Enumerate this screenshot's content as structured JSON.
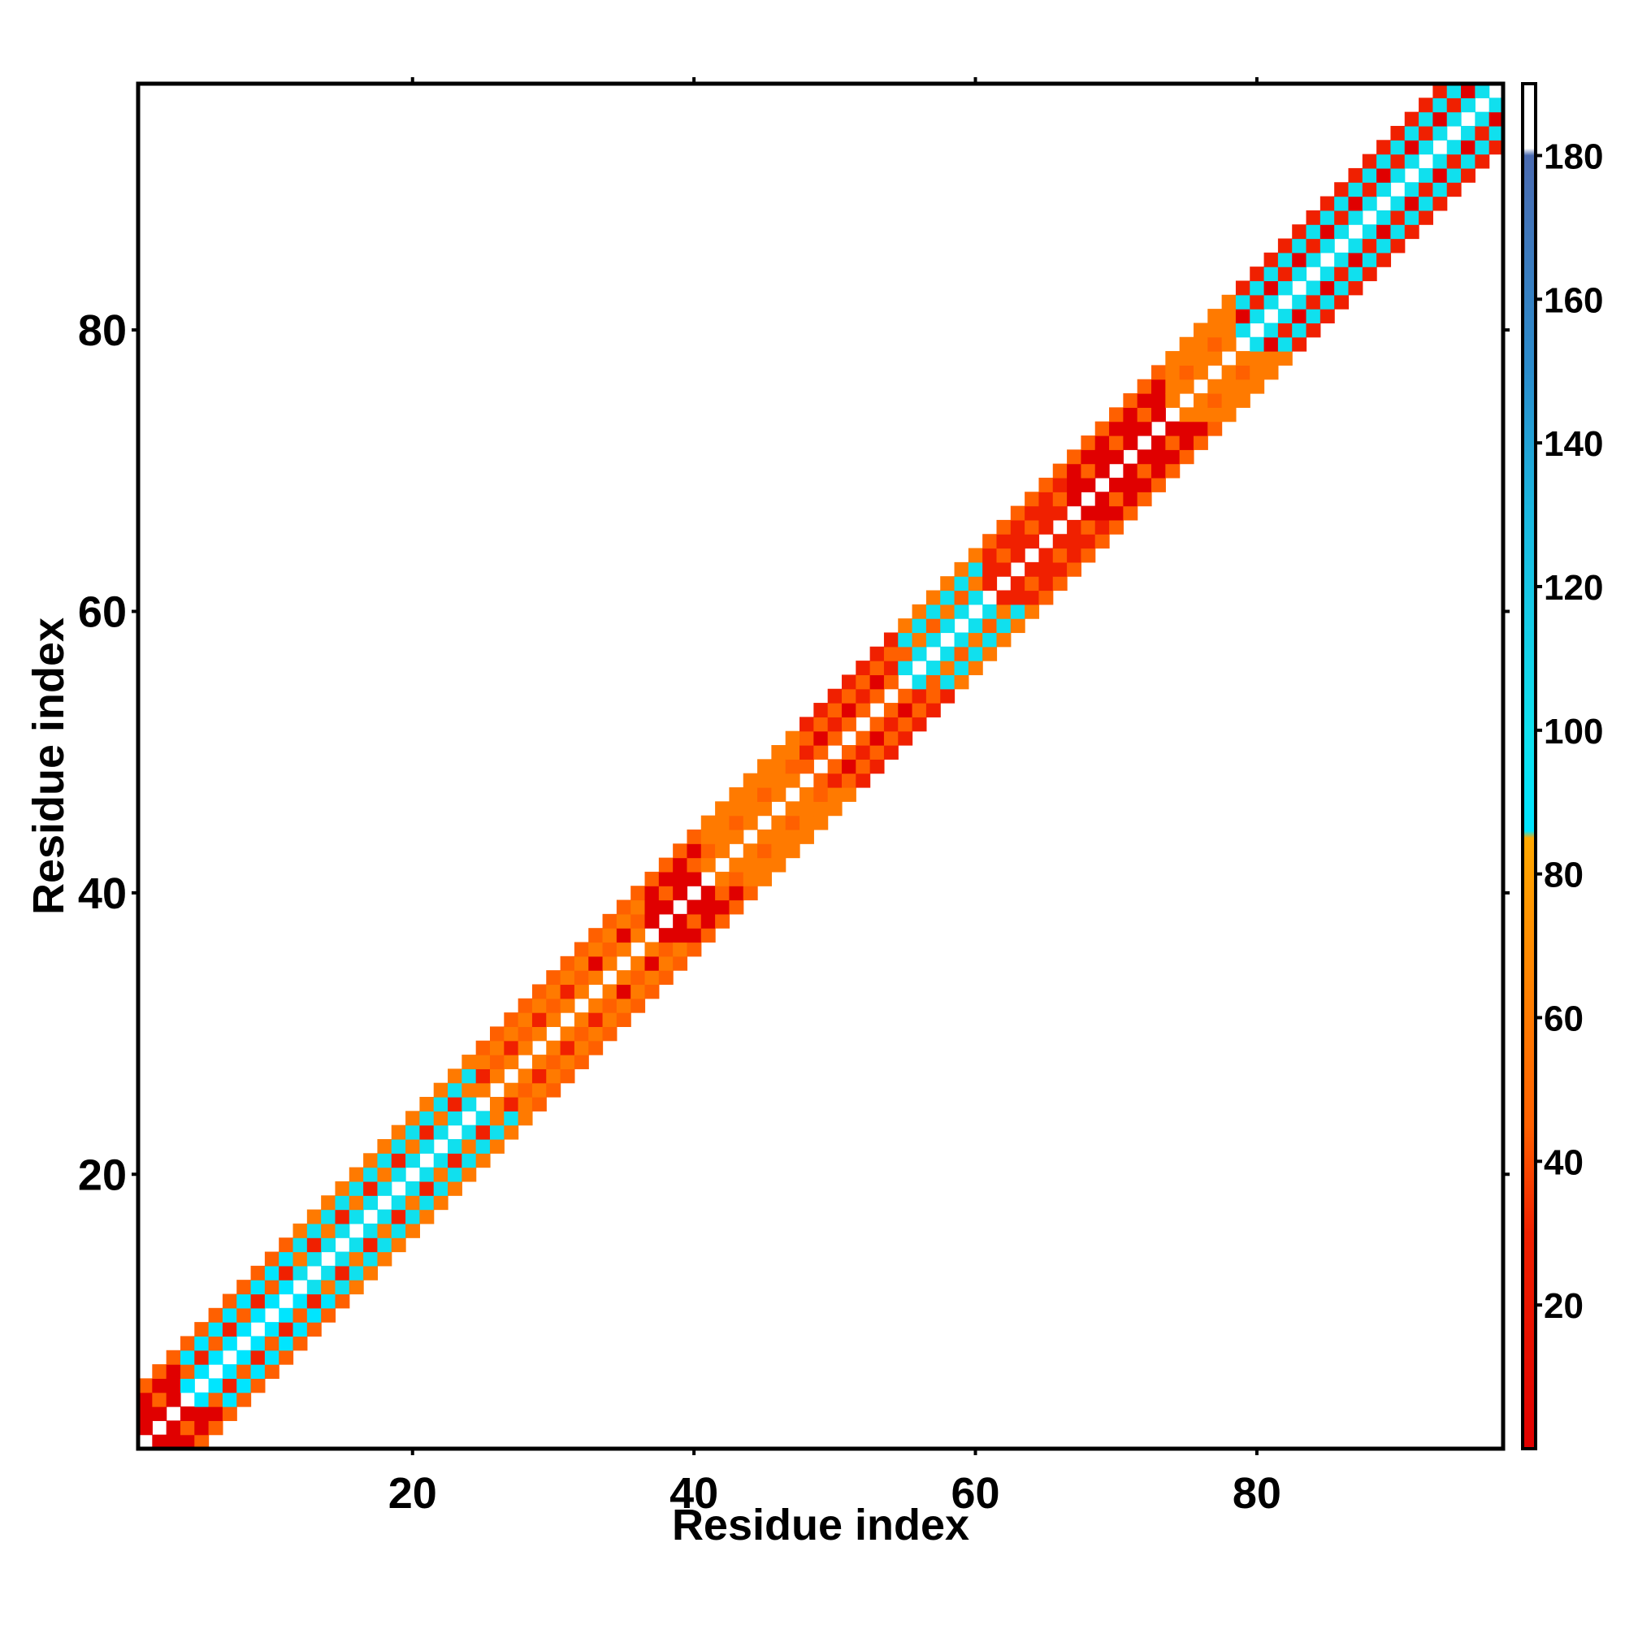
{
  "chart_data": {
    "type": "heatmap",
    "title": "",
    "xlabel": "Residue index",
    "ylabel": "Residue index",
    "xlim": [
      0.5,
      97.5
    ],
    "ylim": [
      0.5,
      97.5
    ],
    "xticks": [
      20,
      40,
      60,
      80
    ],
    "yticks": [
      20,
      40,
      60,
      80
    ],
    "x_ticks_top": [
      20,
      40,
      60,
      80
    ],
    "y_ticks_right": [
      20,
      40,
      60,
      80
    ],
    "grid": false,
    "colorbar": {
      "range": [
        0,
        190
      ],
      "ticks": [
        20,
        40,
        60,
        80,
        100,
        120,
        140,
        160,
        180
      ],
      "stops": [
        {
          "value": 0,
          "color": "#e00000"
        },
        {
          "value": 30,
          "color": "#f02000"
        },
        {
          "value": 45,
          "color": "#ff6000"
        },
        {
          "value": 60,
          "color": "#ff7a00"
        },
        {
          "value": 85,
          "color": "#ffa800"
        },
        {
          "value": 86,
          "color": "#00e5ff"
        },
        {
          "value": 100,
          "color": "#10e0ee"
        },
        {
          "value": 130,
          "color": "#1ab8e0"
        },
        {
          "value": 150,
          "color": "#2a8ccc"
        },
        {
          "value": 180,
          "color": "#4a6ab0"
        },
        {
          "value": 181,
          "color": "#ffffff"
        },
        {
          "value": 190,
          "color": "#ffffff"
        }
      ]
    },
    "band_width": 4,
    "value_grid": [
      {
        "from": 1,
        "to": 3,
        "near": 25,
        "far": 50
      },
      {
        "from": 4,
        "to": 11,
        "near": 95,
        "far": 55
      },
      {
        "from": 12,
        "to": 24,
        "near": 105,
        "far": 60
      },
      {
        "from": 25,
        "to": 27,
        "near": 80,
        "far": 55
      },
      {
        "from": 28,
        "to": 32,
        "near": 65,
        "far": 55
      },
      {
        "from": 33,
        "to": 36,
        "near": 80,
        "far": 50
      },
      {
        "from": 37,
        "to": 40,
        "near": 25,
        "far": 45
      },
      {
        "from": 41,
        "to": 47,
        "near": 65,
        "far": 70
      },
      {
        "from": 48,
        "to": 54,
        "near": 55,
        "far": 40
      },
      {
        "from": 55,
        "to": 60,
        "near": 105,
        "far": 75
      },
      {
        "from": 61,
        "to": 66,
        "near": 30,
        "far": 55
      },
      {
        "from": 67,
        "to": 73,
        "near": 25,
        "far": 45
      },
      {
        "from": 74,
        "to": 78,
        "near": 60,
        "far": 80
      },
      {
        "from": 79,
        "to": 97,
        "near": 100,
        "far": 30
      }
    ]
  }
}
